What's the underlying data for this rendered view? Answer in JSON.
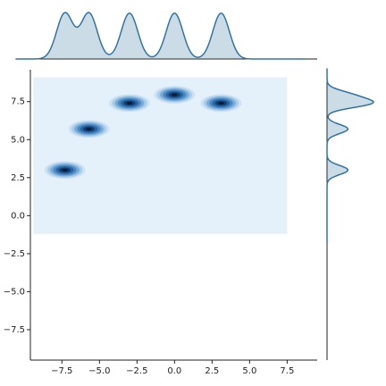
{
  "chart_data": {
    "type": "kde-joint",
    "clusters": {
      "x": [
        -7.3,
        -5.7,
        -3.0,
        0.0,
        3.1
      ],
      "y": [
        3.0,
        5.7,
        7.4,
        7.95,
        7.4
      ]
    },
    "kde_support": {
      "x": [
        -9.4,
        7.5
      ],
      "y": [
        -1.2,
        9.1
      ]
    },
    "color": "#3274a1",
    "xlim": [
      -9.6,
      9.5
    ],
    "ylim": [
      -9.5,
      9.6
    ],
    "xticks": [
      {
        "value": -7.5,
        "label": "−7.5"
      },
      {
        "value": -5,
        "label": "−5.0"
      },
      {
        "value": -2.5,
        "label": "−2.5"
      },
      {
        "value": 0,
        "label": "0.0"
      },
      {
        "value": 2.5,
        "label": "2.5"
      },
      {
        "value": 5,
        "label": "5.0"
      },
      {
        "value": 7.5,
        "label": "7.5"
      }
    ],
    "yticks": [
      {
        "value": -7.5,
        "label": "−7.5"
      },
      {
        "value": -5,
        "label": "−5.0"
      },
      {
        "value": -2.5,
        "label": "−2.5"
      },
      {
        "value": 0,
        "label": "0.0"
      },
      {
        "value": 2.5,
        "label": "2.5"
      },
      {
        "value": 5,
        "label": "5.0"
      },
      {
        "value": 7.5,
        "label": "7.5"
      }
    ]
  }
}
